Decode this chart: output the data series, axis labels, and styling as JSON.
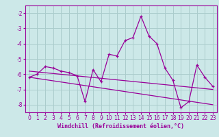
{
  "xlabel": "Windchill (Refroidissement éolien,°C)",
  "background_color": "#cce8e8",
  "grid_color": "#aacccc",
  "line_color": "#990099",
  "hours": [
    0,
    1,
    2,
    3,
    4,
    5,
    6,
    7,
    8,
    9,
    10,
    11,
    12,
    13,
    14,
    15,
    16,
    17,
    18,
    19,
    20,
    21,
    22,
    23
  ],
  "windchill": [
    -6.2,
    -6.0,
    -5.5,
    -5.6,
    -5.8,
    -5.9,
    -6.1,
    -7.8,
    -5.7,
    -6.5,
    -4.7,
    -4.8,
    -3.8,
    -3.6,
    -2.2,
    -3.5,
    -4.0,
    -5.6,
    -6.4,
    -8.2,
    -7.8,
    -5.4,
    -6.2,
    -6.8
  ],
  "trend1_x": [
    0,
    23
  ],
  "trend1_y": [
    -5.8,
    -7.0
  ],
  "trend2_x": [
    0,
    23
  ],
  "trend2_y": [
    -6.2,
    -8.0
  ],
  "ylim": [
    -8.5,
    -1.5
  ],
  "yticks": [
    -8,
    -7,
    -6,
    -5,
    -4,
    -3,
    -2
  ],
  "xticks": [
    0,
    1,
    2,
    3,
    4,
    5,
    6,
    7,
    8,
    9,
    10,
    11,
    12,
    13,
    14,
    15,
    16,
    17,
    18,
    19,
    20,
    21,
    22,
    23
  ],
  "tick_fontsize": 5.5,
  "xlabel_fontsize": 6.0
}
